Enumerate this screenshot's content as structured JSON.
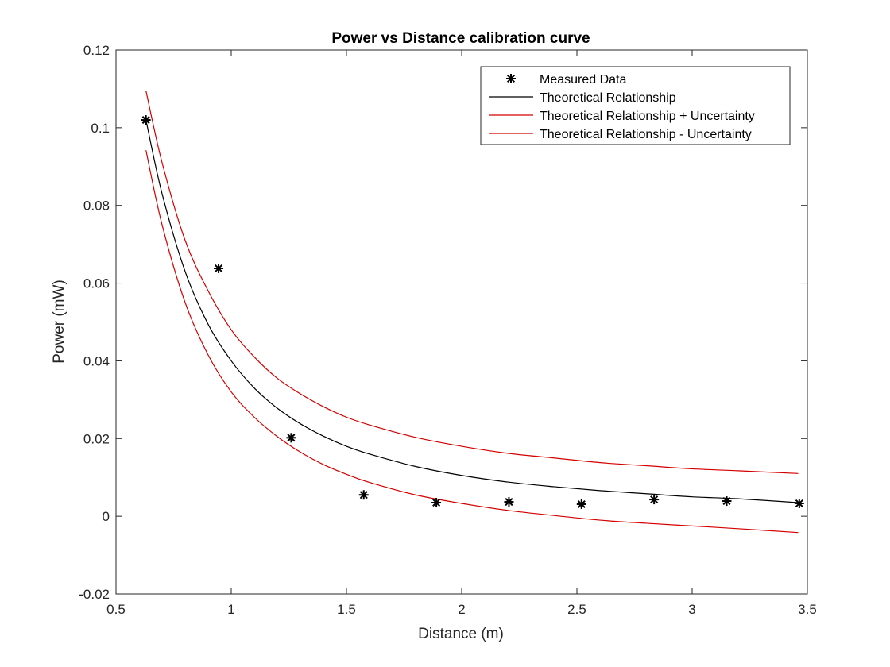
{
  "chart_data": {
    "type": "line",
    "title": "Power vs Distance calibration curve",
    "xlabel": "Distance (m)",
    "ylabel": "Power (mW)",
    "xlim": [
      0.5,
      3.5
    ],
    "ylim": [
      -0.02,
      0.12
    ],
    "xticks": [
      0.5,
      1,
      1.5,
      2,
      2.5,
      3,
      3.5
    ],
    "yticks": [
      -0.02,
      0,
      0.02,
      0.04,
      0.06,
      0.08,
      0.1,
      0.12
    ],
    "xtick_labels": [
      "0.5",
      "1",
      "1.5",
      "2",
      "2.5",
      "3",
      "3.5"
    ],
    "ytick_labels": [
      "-0.02",
      "0",
      "0.02",
      "0.04",
      "0.06",
      "0.08",
      "0.1",
      "0.12"
    ],
    "grid": false,
    "legend_position": "top-right",
    "measured": {
      "name": "Measured Data",
      "marker": "asterisk",
      "color": "#000000",
      "x": [
        0.63,
        0.945,
        1.26,
        1.575,
        1.89,
        2.205,
        2.52,
        2.835,
        3.15,
        3.465
      ],
      "y": [
        0.102,
        0.0638,
        0.0202,
        0.0055,
        0.0035,
        0.0037,
        0.0031,
        0.0043,
        0.0039,
        0.0033
      ]
    },
    "series": [
      {
        "name": "Theoretical Relationship",
        "color": "#000000",
        "x": [
          0.63,
          0.7,
          0.8,
          0.9,
          1.0,
          1.1,
          1.2,
          1.3,
          1.4,
          1.5,
          1.6,
          1.8,
          2.0,
          2.2,
          2.4,
          2.6,
          2.8,
          3.0,
          3.2,
          3.46
        ],
        "y": [
          0.102,
          0.083,
          0.063,
          0.0494,
          0.04,
          0.033,
          0.0278,
          0.0238,
          0.0206,
          0.018,
          0.016,
          0.0128,
          0.0105,
          0.0088,
          0.0076,
          0.0066,
          0.0058,
          0.005,
          0.0045,
          0.0035
        ]
      },
      {
        "name": "Theoretical Relationship + Uncertainty",
        "color": "#d40000",
        "x": [
          0.63,
          0.7,
          0.8,
          0.9,
          1.0,
          1.1,
          1.2,
          1.3,
          1.4,
          1.5,
          1.6,
          1.8,
          2.0,
          2.2,
          2.4,
          2.6,
          2.8,
          3.0,
          3.2,
          3.46
        ],
        "y": [
          0.1095,
          0.091,
          0.071,
          0.058,
          0.048,
          0.041,
          0.0355,
          0.0315,
          0.0282,
          0.0255,
          0.0235,
          0.0203,
          0.018,
          0.0162,
          0.015,
          0.0138,
          0.013,
          0.0122,
          0.0117,
          0.011
        ]
      },
      {
        "name": "Theoretical Relationship - Uncertainty",
        "color": "#d40000",
        "x": [
          0.63,
          0.7,
          0.8,
          0.9,
          1.0,
          1.1,
          1.2,
          1.3,
          1.4,
          1.5,
          1.6,
          1.8,
          2.0,
          2.2,
          2.4,
          2.6,
          2.8,
          3.0,
          3.2,
          3.46
        ],
        "y": [
          0.0942,
          0.075,
          0.055,
          0.0415,
          0.032,
          0.0255,
          0.0205,
          0.0165,
          0.0133,
          0.0108,
          0.0087,
          0.0055,
          0.0033,
          0.0015,
          0.0002,
          -0.001,
          -0.0018,
          -0.0025,
          -0.0032,
          -0.0042
        ]
      }
    ]
  }
}
